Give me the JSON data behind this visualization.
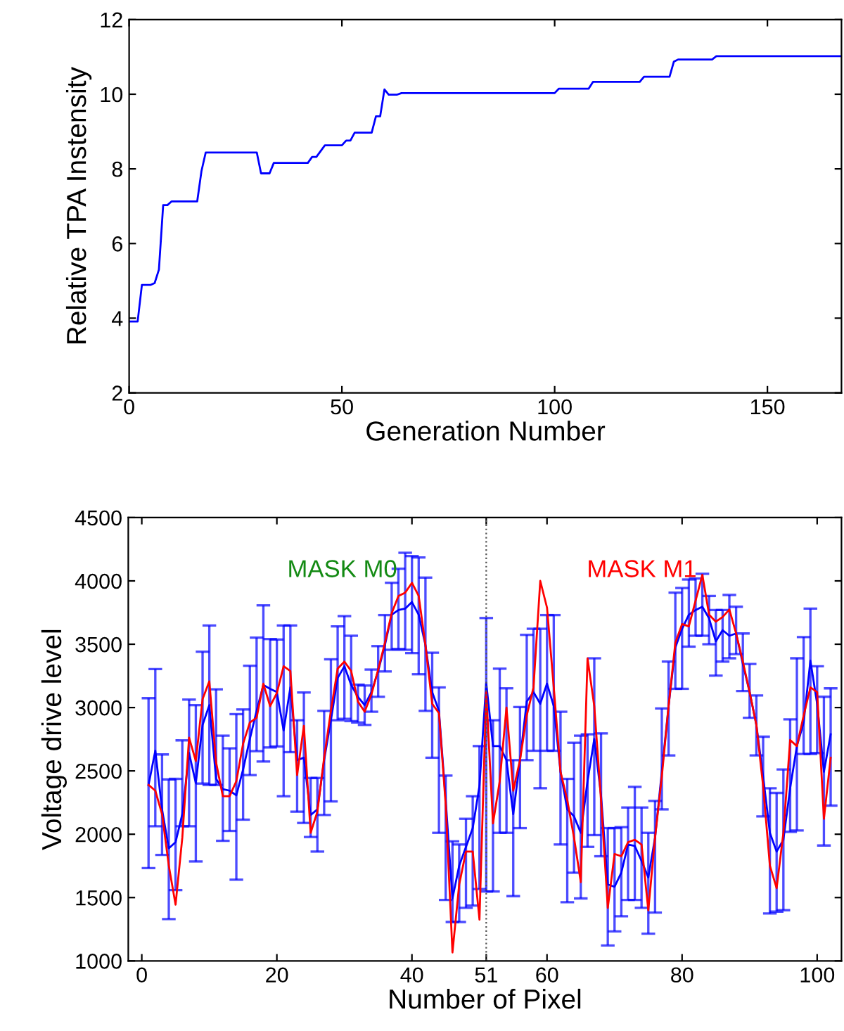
{
  "chart_data": [
    {
      "type": "line",
      "xlabel": "Generation Number",
      "ylabel": "Relative TPA Instensity",
      "xlim": [
        0,
        167.4
      ],
      "ylim": [
        2,
        12
      ],
      "xticks": [
        0,
        50,
        100,
        150
      ],
      "yticks": [
        2,
        4,
        6,
        8,
        10,
        12
      ],
      "grid": false,
      "legend": false,
      "marker": "none",
      "line_style": "solid",
      "series": [
        {
          "color": "#0000ff",
          "x": [
            0,
            2,
            3,
            5,
            6,
            7,
            8,
            9,
            10,
            16,
            17,
            18,
            30,
            31,
            33,
            34,
            42,
            43,
            44,
            46,
            50,
            51,
            52,
            53,
            57,
            58,
            59,
            60,
            61,
            63,
            64,
            100,
            101,
            108,
            109,
            120,
            121,
            127,
            128,
            129,
            137,
            138,
            167.4
          ],
          "values": [
            3.91,
            3.91,
            4.89,
            4.89,
            4.94,
            5.3,
            7.03,
            7.03,
            7.13,
            7.13,
            7.94,
            8.44,
            8.44,
            7.88,
            7.88,
            8.16,
            8.16,
            8.32,
            8.32,
            8.63,
            8.63,
            8.76,
            8.76,
            8.97,
            8.97,
            9.41,
            9.41,
            10.13,
            9.99,
            9.99,
            10.03,
            10.03,
            10.15,
            10.15,
            10.33,
            10.33,
            10.47,
            10.47,
            10.87,
            10.93,
            10.93,
            11.02,
            11.02
          ]
        }
      ]
    },
    {
      "type": "line",
      "xlabel": "Number of Pixel",
      "ylabel": "Voltage drive level",
      "xlim": [
        -2,
        103.6
      ],
      "ylim": [
        1000,
        4500
      ],
      "xticks": [
        0,
        20,
        40,
        51,
        60,
        80,
        100
      ],
      "yticks": [
        1000,
        1500,
        2000,
        2500,
        3000,
        3500,
        4000,
        4500
      ],
      "grid": false,
      "legend": false,
      "marker": "none",
      "line_style": "solid",
      "annotations": [
        "MASK M0",
        "MASK M1"
      ],
      "ref_lines": [
        {
          "axis": "x",
          "value": 51,
          "color": "#555555",
          "line_style": "dotted"
        }
      ],
      "x": [
        1,
        2,
        3,
        4,
        5,
        6,
        7,
        8,
        9,
        10,
        11,
        12,
        13,
        14,
        15,
        16,
        17,
        18,
        19,
        20,
        21,
        22,
        23,
        24,
        25,
        26,
        27,
        28,
        29,
        30,
        31,
        32,
        33,
        34,
        35,
        36,
        37,
        38,
        39,
        40,
        41,
        42,
        43,
        44,
        45,
        46,
        47,
        48,
        49,
        50,
        51,
        52,
        53,
        54,
        55,
        56,
        57,
        58,
        59,
        60,
        61,
        62,
        63,
        64,
        65,
        66,
        67,
        68,
        69,
        70,
        71,
        72,
        73,
        74,
        75,
        76,
        77,
        78,
        79,
        80,
        81,
        82,
        83,
        84,
        85,
        86,
        87,
        88,
        89,
        90,
        91,
        92,
        93,
        94,
        95,
        96,
        97,
        98,
        99,
        100,
        101,
        102
      ],
      "series": [
        {
          "color": "#0000ff",
          "values": [
            2389,
            2659,
            2196,
            1889,
            1937,
            2159,
            2641,
            2404,
            2863,
            3019,
            2437,
            2356,
            2344,
            2307,
            2511,
            2752,
            2974,
            3178,
            3148,
            3122,
            2819,
            3159,
            2585,
            2604,
            2152,
            2196,
            2585,
            2900,
            3233,
            3326,
            3178,
            3085,
            3019,
            3122,
            3289,
            3493,
            3733,
            3770,
            3781,
            3833,
            3733,
            3493,
            3122,
            2974,
            2270,
            1493,
            1752,
            1900,
            2048,
            2381,
            3196,
            2696,
            2696,
            2585,
            2159,
            2585,
            3048,
            3122,
            3030,
            3189,
            3011,
            2493,
            2196,
            2141,
            2011,
            2419,
            2752,
            2307,
            1604,
            1585,
            1696,
            1919,
            1907,
            1789,
            1659,
            1974,
            2493,
            3011,
            3474,
            3622,
            3733,
            3770,
            3796,
            3704,
            3522,
            3611,
            3567,
            3585,
            3344,
            3122,
            2863,
            2456,
            2011,
            1863,
            1956,
            2363,
            2696,
            2882,
            3370,
            3030,
            2493,
            2789
          ],
          "errors": [
            [
              1733,
              3074
            ],
            [
              2063,
              3304
            ],
            [
              1837,
              2630
            ],
            [
              1330,
              2433
            ],
            [
              1559,
              2437
            ],
            [
              2063,
              2741
            ],
            [
              2063,
              3063
            ],
            [
              1785,
              3019
            ],
            [
              2400,
              3441
            ],
            [
              2389,
              3648
            ],
            [
              2389,
              3144
            ],
            [
              1948,
              2778
            ],
            [
              2026,
              2678
            ],
            [
              1641,
              2948
            ],
            [
              2115,
              2985
            ],
            [
              2467,
              3330
            ],
            [
              2656,
              3552
            ],
            [
              2574,
              3807
            ],
            [
              2685,
              3541
            ],
            [
              2693,
              3537
            ],
            [
              2300,
              3648
            ],
            [
              2648,
              3648
            ],
            [
              2178,
              2900
            ],
            [
              2089,
              3119
            ],
            [
              1978,
              2444
            ],
            [
              1863,
              2444
            ],
            [
              2152,
              2974
            ],
            [
              2259,
              3381
            ],
            [
              2900,
              3641
            ],
            [
              2911,
              3722
            ],
            [
              2893,
              3567
            ],
            [
              2882,
              3181
            ],
            [
              2863,
              3174
            ],
            [
              2967,
              3300
            ],
            [
              3085,
              3485
            ],
            [
              3285,
              3730
            ],
            [
              3456,
              3985
            ],
            [
              3463,
              4096
            ],
            [
              3456,
              4222
            ],
            [
              3430,
              4196
            ],
            [
              3263,
              4185
            ],
            [
              2974,
              4026
            ],
            [
              2604,
              3433
            ],
            [
              2011,
              3159
            ],
            [
              1481,
              2463
            ],
            [
              1307,
              1944
            ],
            [
              1307,
              1919
            ],
            [
              1419,
              2122
            ],
            [
              1437,
              2300
            ],
            [
              1567,
              2696
            ],
            [
              1548,
              3707
            ],
            [
              1548,
              2900
            ],
            [
              2011,
              3307
            ],
            [
              2011,
              3152
            ],
            [
              1511,
              2585
            ],
            [
              2048,
              3004
            ],
            [
              2585,
              3574
            ],
            [
              2659,
              3622
            ],
            [
              2363,
              3622
            ],
            [
              2659,
              3730
            ],
            [
              2659,
              3730
            ],
            [
              1919,
              2967
            ],
            [
              1463,
              2437
            ],
            [
              1696,
              2722
            ],
            [
              1493,
              2778
            ],
            [
              1900,
              2789
            ],
            [
              1993,
              3389
            ],
            [
              1826,
              2796
            ],
            [
              1122,
              2048
            ],
            [
              1233,
              2048
            ],
            [
              1352,
              2056
            ],
            [
              1481,
              2211
            ],
            [
              1481,
              2374
            ],
            [
              1419,
              2211
            ],
            [
              1215,
              2011
            ],
            [
              1381,
              2263
            ],
            [
              2196,
              2993
            ],
            [
              2622,
              3363
            ],
            [
              3148,
              3907
            ],
            [
              3148,
              3944
            ],
            [
              3481,
              4011
            ],
            [
              3567,
              4019
            ],
            [
              3567,
              4056
            ],
            [
              3500,
              3881
            ],
            [
              3252,
              3770
            ],
            [
              3363,
              3770
            ],
            [
              3389,
              3889
            ],
            [
              3422,
              3796
            ],
            [
              3130,
              3585
            ],
            [
              2919,
              3344
            ],
            [
              2622,
              3096
            ],
            [
              2141,
              2770
            ],
            [
              1374,
              2363
            ],
            [
              1389,
              2326
            ],
            [
              1400,
              2511
            ],
            [
              2019,
              2907
            ],
            [
              2030,
              3389
            ],
            [
              2633,
              3556
            ],
            [
              2633,
              3781
            ],
            [
              2641,
              3326
            ],
            [
              1911,
              3085
            ],
            [
              2226,
              3152
            ]
          ]
        },
        {
          "color": "#ff0000",
          "values": [
            2389,
            2344,
            2159,
            1752,
            1444,
            1974,
            2763,
            2578,
            3067,
            3207,
            2567,
            2300,
            2300,
            2419,
            2715,
            2882,
            2919,
            3189,
            3011,
            3115,
            3326,
            3289,
            2467,
            2856,
            2011,
            2178,
            2604,
            2974,
            3307,
            3363,
            3289,
            3048,
            2967,
            3104,
            3300,
            3511,
            3744,
            3881,
            3907,
            3985,
            3881,
            3493,
            3030,
            2956,
            2233,
            1067,
            1604,
            1863,
            1863,
            1326,
            3122,
            2085,
            2419,
            3000,
            2344,
            2585,
            2937,
            3159,
            4000,
            3789,
            3159,
            2493,
            2270,
            1974,
            1622,
            3389,
            3011,
            2270,
            1419,
            1844,
            1826,
            1937,
            1956,
            1919,
            1400,
            1974,
            2456,
            3011,
            3511,
            3659,
            3641,
            3844,
            4048,
            3733,
            3678,
            3715,
            3774,
            3585,
            3363,
            3122,
            2863,
            2381,
            1752,
            1574,
            2011,
            2744,
            2696,
            2937,
            3159,
            3122,
            2122,
            2604
          ]
        }
      ]
    }
  ]
}
